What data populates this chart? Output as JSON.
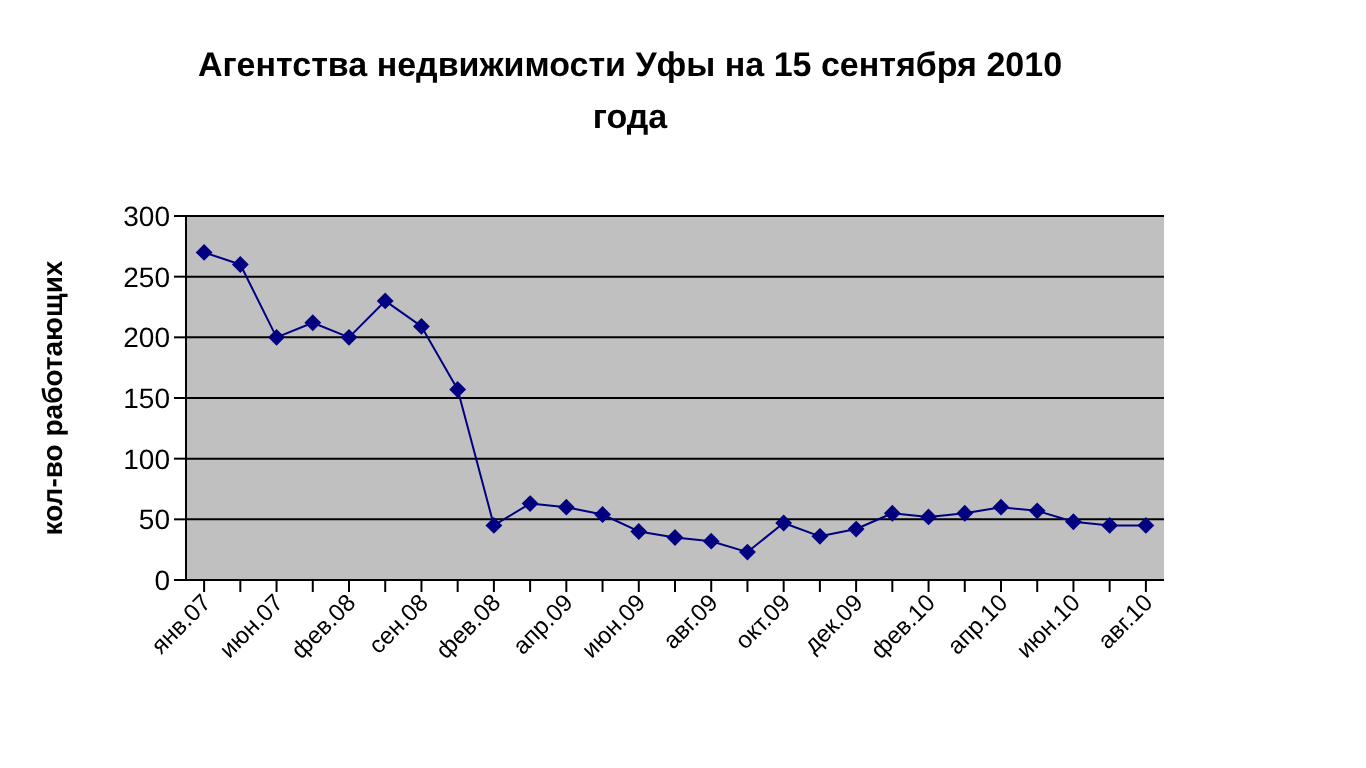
{
  "chart_data": {
    "type": "line",
    "title": "Агентства недвижимости Уфы на 15 сентября 2010 года",
    "ylabel": "кол-во работающих",
    "categories": [
      "янв.07",
      null,
      "июн.07",
      null,
      "фев.08",
      null,
      "сен.08",
      null,
      "фев.08",
      null,
      "апр.09",
      null,
      "июн.09",
      null,
      "авг.09",
      null,
      "окт.09",
      null,
      "дек.09",
      null,
      "фев.10",
      null,
      "апр.10",
      null,
      "июн.10",
      null,
      "авг.10"
    ],
    "series": [
      {
        "color": "#000080",
        "values": [
          270,
          260,
          200,
          212,
          200,
          230,
          209,
          157,
          45,
          63,
          60,
          54,
          40,
          35,
          32,
          23,
          47,
          36,
          42,
          55,
          52,
          55,
          60,
          57,
          48,
          45,
          45
        ]
      }
    ],
    "ylim": [
      0,
      300
    ],
    "yticks": [
      0,
      50,
      100,
      150,
      200,
      250,
      300
    ],
    "grid": "y",
    "marker": "diamond",
    "line_style": "solid",
    "legend": false
  }
}
